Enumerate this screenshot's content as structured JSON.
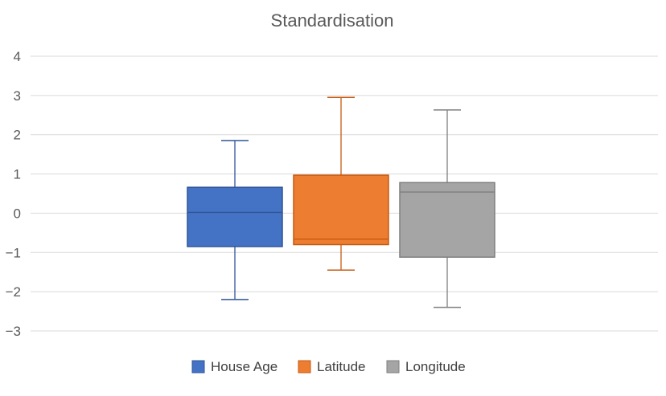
{
  "chart_data": {
    "type": "box",
    "title": "Standardisation",
    "xlabel": "",
    "ylabel": "",
    "ylim": [
      -3,
      4
    ],
    "yticks": [
      "4",
      "3",
      "2",
      "1",
      "0",
      "−1",
      "−2",
      "−3"
    ],
    "ytick_values": [
      4,
      3,
      2,
      1,
      0,
      -1,
      -2,
      -3
    ],
    "grid": true,
    "legend_position": "bottom",
    "series": [
      {
        "name": "House Age",
        "color": "#4472C4",
        "edge_color": "#2F5597",
        "min": -2.2,
        "q1": -0.85,
        "median": 0.02,
        "q3": 0.66,
        "max": 1.85
      },
      {
        "name": "Latitude",
        "color": "#ED7D31",
        "edge_color": "#C55A11",
        "min": -1.45,
        "q1": -0.8,
        "median": -0.66,
        "q3": 0.97,
        "max": 2.95
      },
      {
        "name": "Longitude",
        "color": "#A5A5A5",
        "edge_color": "#7F7F7F",
        "min": -2.4,
        "q1": -1.12,
        "median": 0.54,
        "q3": 0.78,
        "max": 2.63
      }
    ]
  }
}
